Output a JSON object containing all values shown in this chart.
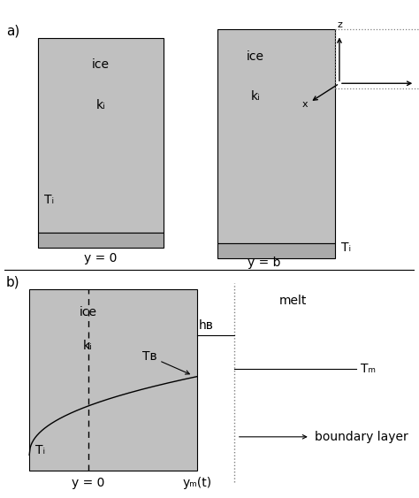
{
  "fig_width": 4.74,
  "fig_height": 5.63,
  "bg_color": "#ffffff",
  "box_face_color": "#c0c0c0",
  "bottom_strip_color": "#aaaaaa",
  "panel_a_label": "a)",
  "panel_b_label": "b)",
  "ylabel_a1": "y = 0",
  "ylabel_a2": "y = b",
  "ylabel_b1": "y = 0",
  "ylabel_b2": "yₘ(t)",
  "ice_label": "ice",
  "ki_label": "kᵢ",
  "Ti_label": "Tᵢ",
  "Tm_label": "Tₘ",
  "TB_label": "Tв",
  "hB_label": "hв",
  "melt_label": "melt",
  "boundary_layer_label": "boundary layer"
}
